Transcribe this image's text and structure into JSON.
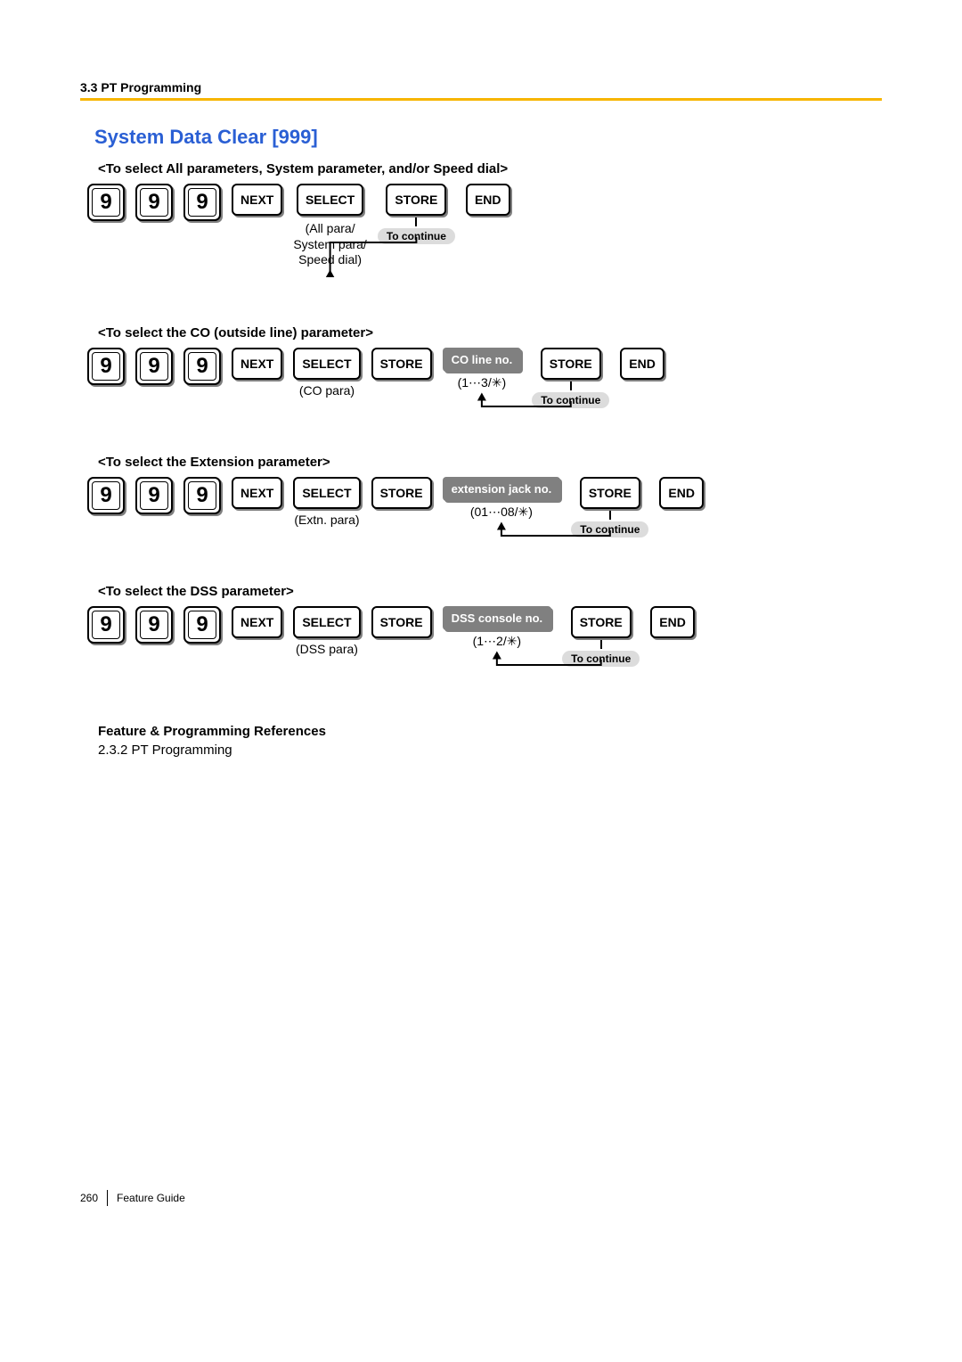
{
  "header": {
    "section": "3.3 PT Programming"
  },
  "title": "System Data Clear [999]",
  "groups": [
    {
      "sub": "<To select All parameters, System parameter, and/or Speed dial>",
      "digits": [
        "9",
        "9",
        "9"
      ],
      "steps": [
        {
          "type": "btn",
          "label": "NEXT"
        },
        {
          "type": "btn",
          "label": "SELECT",
          "note1": "(All para/",
          "note2": "System para/",
          "note3": "Speed dial)"
        },
        {
          "type": "btn",
          "label": "STORE",
          "continue": "To continue"
        },
        {
          "type": "btn",
          "label": "END"
        }
      ]
    },
    {
      "sub": "<To select the CO (outside line) parameter>",
      "digits": [
        "9",
        "9",
        "9"
      ],
      "steps": [
        {
          "type": "btn",
          "label": "NEXT"
        },
        {
          "type": "btn",
          "label": "SELECT",
          "note1": "(CO para)"
        },
        {
          "type": "btn",
          "label": "STORE"
        },
        {
          "type": "gray",
          "label": "CO line no.",
          "note1": "(1⋯3/✳)"
        },
        {
          "type": "btn",
          "label": "STORE",
          "continue": "To continue"
        },
        {
          "type": "btn",
          "label": "END"
        }
      ]
    },
    {
      "sub": "<To select the Extension parameter>",
      "digits": [
        "9",
        "9",
        "9"
      ],
      "steps": [
        {
          "type": "btn",
          "label": "NEXT"
        },
        {
          "type": "btn",
          "label": "SELECT",
          "note1": "(Extn. para)"
        },
        {
          "type": "btn",
          "label": "STORE"
        },
        {
          "type": "gray",
          "label": "extension jack no.",
          "note1": "(01⋯08/✳)"
        },
        {
          "type": "btn",
          "label": "STORE",
          "continue": "To continue"
        },
        {
          "type": "btn",
          "label": "END"
        }
      ]
    },
    {
      "sub": "<To select the DSS parameter>",
      "digits": [
        "9",
        "9",
        "9"
      ],
      "steps": [
        {
          "type": "btn",
          "label": "NEXT"
        },
        {
          "type": "btn",
          "label": "SELECT",
          "note1": "(DSS para)"
        },
        {
          "type": "btn",
          "label": "STORE"
        },
        {
          "type": "gray",
          "label": "DSS console no.",
          "note1": "(1⋯2/✳)"
        },
        {
          "type": "btn",
          "label": "STORE",
          "continue": "To continue"
        },
        {
          "type": "btn",
          "label": "END"
        }
      ]
    }
  ],
  "features": {
    "heading": "Feature & Programming References",
    "line": "2.3.2 PT Programming"
  },
  "footer": {
    "page": "260",
    "guide": "Feature Guide"
  },
  "style": {
    "accent_blue": "#2a5fd4",
    "rule_color": "#f7b500",
    "gray_pill": "#dcdcdc",
    "gray_box": "#808080"
  }
}
